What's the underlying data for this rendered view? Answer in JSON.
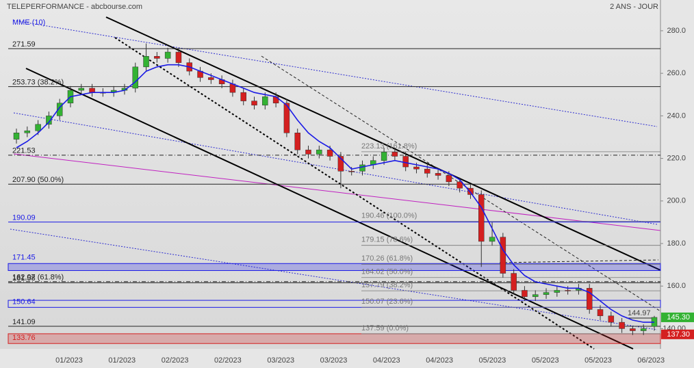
{
  "chart_data": {
    "type": "candlestick",
    "title": "TELEPERFORMANCE - abcbourse.com",
    "subtitle": "2 ANS - JOUR",
    "x_labels": [
      "01/2023",
      "01/2023",
      "02/2023",
      "02/2023",
      "03/2023",
      "03/2023",
      "04/2023",
      "04/2023",
      "05/2023",
      "05/2023",
      "05/2023",
      "06/2023"
    ],
    "open": [
      229,
      232,
      233,
      236,
      240,
      246,
      252,
      253,
      251,
      251,
      252,
      253,
      263,
      268,
      267,
      270,
      265,
      261,
      258,
      257,
      255,
      251,
      247,
      245,
      249,
      246,
      232,
      224,
      222,
      224,
      221,
      214,
      214,
      217,
      219,
      223,
      221,
      216,
      215,
      213,
      212,
      209,
      206,
      203,
      181,
      183,
      166,
      158,
      155,
      156,
      157,
      158,
      158,
      159,
      149,
      146,
      143,
      140,
      139,
      141
    ],
    "high": [
      234,
      235,
      238,
      242,
      248,
      254,
      255,
      255,
      253,
      254,
      255,
      265,
      274,
      270,
      272,
      272,
      267,
      263,
      260,
      259,
      257,
      253,
      249,
      251,
      251,
      248,
      234,
      226,
      226,
      226,
      223,
      216,
      219,
      221,
      225,
      225,
      223,
      218,
      217,
      215,
      214,
      211,
      208,
      205,
      190,
      185,
      168,
      160,
      158,
      159,
      160,
      160,
      161,
      161,
      151,
      148,
      145,
      141,
      142,
      146
    ],
    "low": [
      227,
      230,
      231,
      234,
      238,
      244,
      250,
      249,
      249,
      249,
      250,
      251,
      261,
      265,
      265,
      263,
      259,
      256,
      255,
      253,
      249,
      245,
      243,
      243,
      244,
      230,
      222,
      220,
      220,
      219,
      206,
      212,
      212,
      215,
      217,
      219,
      214,
      213,
      211,
      210,
      207,
      204,
      201,
      169,
      179,
      164,
      156,
      153,
      153,
      154,
      155,
      156,
      156,
      147,
      144,
      141,
      138,
      137,
      137,
      139
    ],
    "close": [
      232,
      233,
      236,
      240,
      246,
      252,
      253,
      251,
      251,
      252,
      253,
      263,
      268,
      267,
      270,
      265,
      261,
      258,
      257,
      255,
      251,
      247,
      245,
      249,
      246,
      232,
      224,
      222,
      224,
      221,
      214,
      214,
      217,
      219,
      223,
      221,
      216,
      215,
      213,
      212,
      209,
      206,
      203,
      181,
      183,
      166,
      158,
      155,
      156,
      157,
      158,
      158,
      159,
      149,
      146,
      143,
      140,
      139,
      140,
      145.3
    ],
    "up_color": "#33b233",
    "down_color": "#d42020",
    "mme": {
      "name": "MME (10)",
      "color": "#1a1ae6",
      "values": [
        225,
        228,
        232,
        237,
        244,
        249,
        250,
        251,
        251,
        251,
        252,
        256,
        261,
        263,
        264,
        264,
        263,
        261,
        259,
        257,
        255,
        253,
        251,
        250,
        249,
        245,
        238,
        232,
        228,
        225,
        220,
        215,
        216,
        217,
        218,
        219,
        218,
        217,
        216,
        215,
        213,
        210,
        204,
        197,
        187,
        177,
        170,
        165,
        162,
        161,
        160,
        159,
        159,
        157,
        153,
        149,
        146,
        144,
        143,
        143
      ]
    },
    "ylim": [
      130.5,
      294.45
    ],
    "yticks": [
      {
        "value": 140,
        "label": "140.00"
      },
      {
        "value": 160,
        "label": "160.0"
      },
      {
        "value": 180,
        "label": "180.0"
      },
      {
        "value": 200,
        "label": "200.0"
      },
      {
        "value": 220,
        "label": "220.0"
      },
      {
        "value": 240,
        "label": "240.0"
      },
      {
        "value": 260,
        "label": "260.0"
      },
      {
        "value": 280,
        "label": "280.0"
      }
    ],
    "levels": [
      {
        "value": 271.59,
        "color": "#222222",
        "style": "solid"
      },
      {
        "value": 253.73,
        "label": "253.73  (38.2%)",
        "color": "#222222",
        "style": "solid"
      },
      {
        "value": 221.53,
        "color": "#222222",
        "style": "dashdot"
      },
      {
        "value": 207.9,
        "label": "207.90  (50.0%)",
        "color": "#222222",
        "style": "solid"
      },
      {
        "value": 190.09,
        "color": "#1a1ae6",
        "style": "solid"
      },
      {
        "value": 171.45,
        "color": "#1a1ae6",
        "style": "zone",
        "range": [
          167.3,
          170.6
        ]
      },
      {
        "value": 161.58,
        "color": "#222222",
        "style": "solid"
      },
      {
        "value": 162.07,
        "label": "162.07  (61.8%)",
        "color": "#222222",
        "style": "dashdot"
      },
      {
        "value": 150.64,
        "color": "#1a1ae6",
        "style": "box",
        "range": [
          150.0,
          153.3
        ]
      },
      {
        "value": 141.09,
        "color": "#222222",
        "style": "solid"
      },
      {
        "value": 133.76,
        "color": "#d42020",
        "style": "zone",
        "range": [
          133.0,
          137.6
        ]
      }
    ],
    "fib_levels": [
      {
        "value": 223.13,
        "label": "223.13  (161.8%)"
      },
      {
        "value": 190.46,
        "label": "190.46  (100.0%)"
      },
      {
        "value": 179.15,
        "label": "179.15  (78.6%)"
      },
      {
        "value": 170.26,
        "label": "170.26  (61.8%)"
      },
      {
        "value": 164.02,
        "label": "164.02  (50.0%)"
      },
      {
        "value": 157.79,
        "label": "157.79  (38.2%)"
      },
      {
        "value": 150.07,
        "label": "150.07  (23.6%)"
      },
      {
        "value": 137.59,
        "label": "137.59  (0.0%)"
      }
    ],
    "marker_level": 144.97,
    "tags": [
      {
        "value": 145.3,
        "label": "145.30",
        "color": "#33b233"
      },
      {
        "value": 137.3,
        "label": "137.30",
        "color": "#d42020"
      }
    ]
  }
}
